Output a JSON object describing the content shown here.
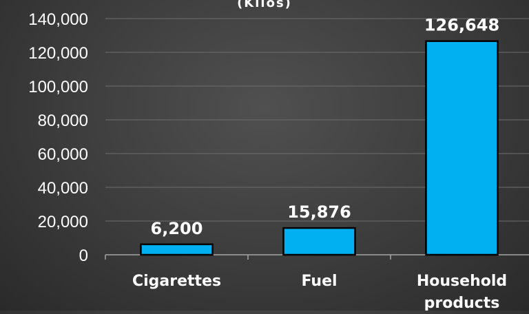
{
  "chart_data": {
    "type": "bar",
    "title": "(Kilos)",
    "categories": [
      [
        "Cigarettes"
      ],
      [
        "Fuel"
      ],
      [
        "Household",
        "products"
      ]
    ],
    "values": [
      6200,
      15876,
      126648
    ],
    "value_labels": [
      "6,200",
      "15,876",
      "126,648"
    ],
    "yticks": [
      0,
      20000,
      40000,
      60000,
      80000,
      100000,
      120000,
      140000
    ],
    "ytick_labels": [
      "0",
      "20,000",
      "40,000",
      "60,000",
      "80,000",
      "100,000",
      "120,000",
      "140,000"
    ],
    "ylim": [
      0,
      140000
    ],
    "grid": true,
    "legend": "none",
    "bar_color": "#00b0f0",
    "bar_border_color": "#000000",
    "text_color": "#ffffff"
  }
}
